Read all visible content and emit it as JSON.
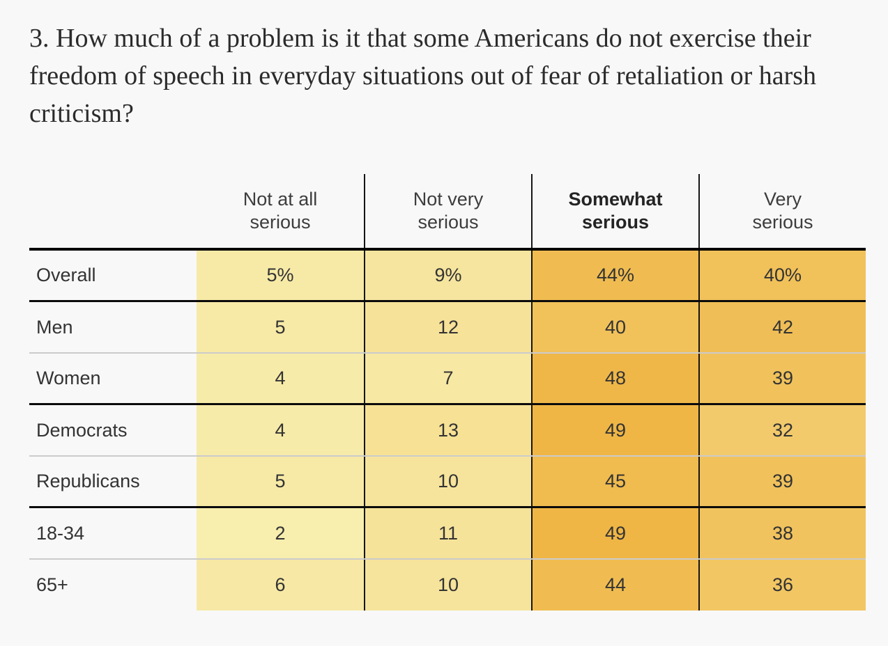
{
  "page": {
    "background": "#f8f8f8"
  },
  "title": "3. How much of a problem is it that some Americans do not exercise their freedom of speech in everyday situations out of fear of retaliation or harsh criticism?",
  "table": {
    "headers": [
      {
        "line1": "Not at all",
        "line2": "serious",
        "emphasis": false
      },
      {
        "line1": "Not very",
        "line2": "serious",
        "emphasis": false
      },
      {
        "line1": "Somewhat",
        "line2": "serious",
        "emphasis": true
      },
      {
        "line1": "Very",
        "line2": "serious",
        "emphasis": false
      }
    ],
    "rows": [
      {
        "label": "Overall",
        "cells": [
          "5%",
          "9%",
          "44%",
          "40%"
        ]
      },
      {
        "label": "Men",
        "cells": [
          "5",
          "12",
          "40",
          "42"
        ]
      },
      {
        "label": "Women",
        "cells": [
          "4",
          "7",
          "48",
          "39"
        ]
      },
      {
        "label": "Democrats",
        "cells": [
          "4",
          "13",
          "49",
          "32"
        ]
      },
      {
        "label": "Republicans",
        "cells": [
          "5",
          "10",
          "45",
          "39"
        ]
      },
      {
        "label": "18-34",
        "cells": [
          "2",
          "11",
          "49",
          "38"
        ]
      },
      {
        "label": "65+",
        "cells": [
          "6",
          "10",
          "44",
          "36"
        ]
      }
    ]
  },
  "chart_data": {
    "type": "heatmap",
    "title": "3. How much of a problem is it that some Americans do not exercise their freedom of speech in everyday situations out of fear of retaliation or harsh criticism?",
    "columns": [
      "Not at all serious",
      "Not very serious",
      "Somewhat serious",
      "Very serious"
    ],
    "highlighted_column": "Somewhat serious",
    "units": "%",
    "rows": [
      {
        "label": "Overall",
        "values": [
          5,
          9,
          44,
          40
        ]
      },
      {
        "label": "Men",
        "values": [
          5,
          12,
          40,
          42
        ]
      },
      {
        "label": "Women",
        "values": [
          4,
          7,
          48,
          39
        ]
      },
      {
        "label": "Democrats",
        "values": [
          4,
          13,
          49,
          32
        ]
      },
      {
        "label": "Republicans",
        "values": [
          5,
          10,
          45,
          39
        ]
      },
      {
        "label": "18-34",
        "values": [
          2,
          11,
          49,
          38
        ]
      },
      {
        "label": "65+",
        "values": [
          6,
          10,
          44,
          36
        ]
      }
    ],
    "color_scale": {
      "min": 0,
      "max": 50,
      "min_color": "#f8f0b2",
      "max_color": "#efb544"
    }
  }
}
